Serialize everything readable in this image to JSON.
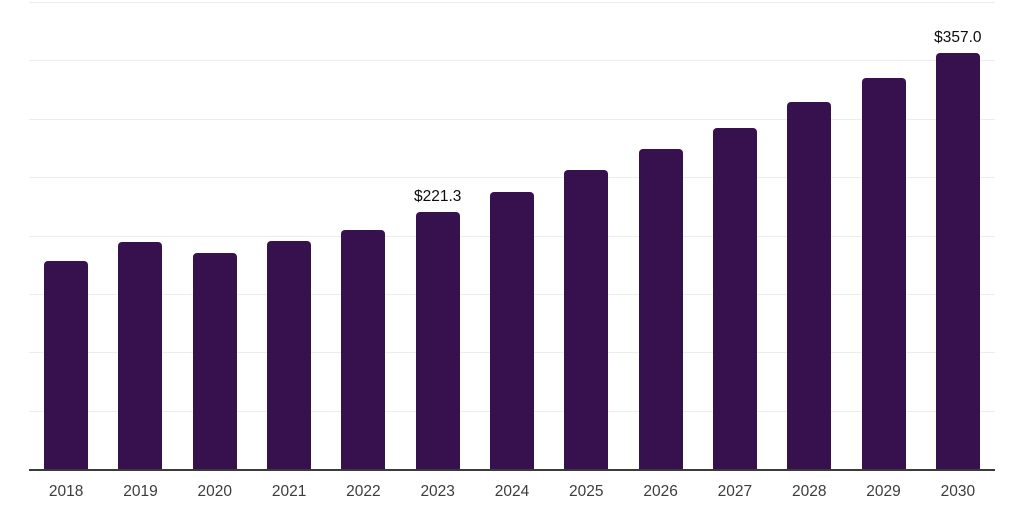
{
  "chart_data": {
    "type": "bar",
    "title": "",
    "xlabel": "",
    "ylabel": "",
    "categories": [
      "2018",
      "2019",
      "2020",
      "2021",
      "2022",
      "2023",
      "2024",
      "2025",
      "2026",
      "2027",
      "2028",
      "2029",
      "2030"
    ],
    "values": [
      179,
      195,
      186,
      196,
      206,
      221.3,
      238,
      257,
      275,
      293,
      315,
      336,
      357
    ],
    "data_labels": [
      "",
      "",
      "",
      "",
      "",
      "$221.3",
      "",
      "",
      "",
      "",
      "",
      "",
      "$357.0"
    ],
    "ylim": [
      0,
      400
    ],
    "grid_step": 50,
    "grid": "horizontal-light",
    "legend": "none",
    "bar_color": "#36114D",
    "axis_line_color": "#3a3a3a",
    "grid_line_color": "#ededed",
    "tick_label_color": "#3c3c3c",
    "data_label_color": "#0d0d0d",
    "background_color": "#ffffff"
  }
}
